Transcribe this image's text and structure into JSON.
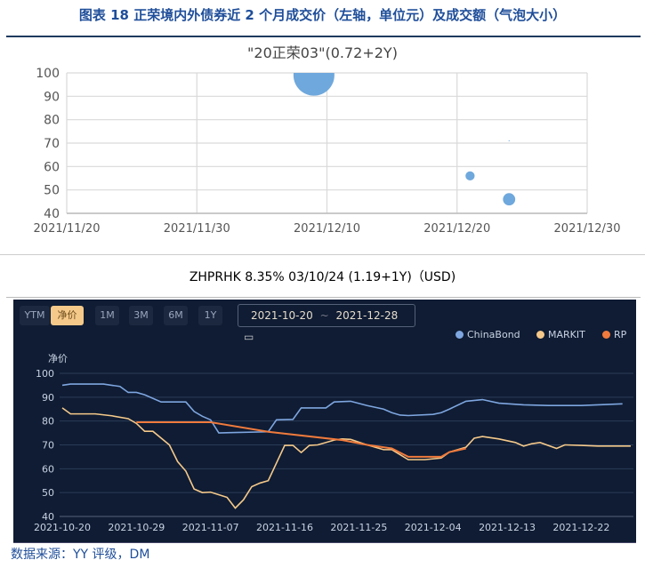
{
  "header": {
    "title": "图表 18 正荣境内外债券近 2 个月成交价（左轴，单位元）及成交额（气泡大小）"
  },
  "chart_data": [
    {
      "type": "scatter",
      "title": "\"20正荣03\"(0.72+2Y)",
      "ylim": [
        40,
        100
      ],
      "yticks": [
        "100",
        "90",
        "80",
        "70",
        "60",
        "50",
        "40"
      ],
      "xlim": [
        "2021-11-20",
        "2021-12-30"
      ],
      "xticks": [
        "2021/11/20",
        "2021/11/30",
        "2021/12/10",
        "2021/12/20",
        "2021/12/30"
      ],
      "grid": true,
      "bubble_color": "#6fa8dc",
      "points": [
        {
          "x": "2021-12-09",
          "y": 99,
          "size": 100
        },
        {
          "x": "2021-12-21",
          "y": 56,
          "size": 5
        },
        {
          "x": "2021-12-24",
          "y": 46,
          "size": 9
        },
        {
          "x": "2021-12-24",
          "y": 71,
          "size": 0.05
        }
      ]
    },
    {
      "type": "line",
      "title": "ZHPRHK 8.35% 03/10/24 (1.19+1Y)（USD)",
      "ylabel": "净价",
      "ylim": [
        40,
        100
      ],
      "yticks": [
        "100",
        "90",
        "80",
        "70",
        "60",
        "50",
        "40"
      ],
      "xlim": [
        "2021-10-20",
        "2021-12-28"
      ],
      "xticks": [
        "2021-10-20",
        "2021-10-29",
        "2021-11-07",
        "2021-11-16",
        "2021-11-25",
        "2021-12-04",
        "2021-12-13",
        "2021-12-22"
      ],
      "grid": true,
      "legend": "top-right",
      "series": [
        {
          "name": "ChinaBond",
          "color": "#7ea6e0",
          "points": [
            [
              "2021-10-20",
              95
            ],
            [
              "2021-10-21",
              95.5
            ],
            [
              "2021-10-25",
              95.5
            ],
            [
              "2021-10-27",
              94.5
            ],
            [
              "2021-10-28",
              92
            ],
            [
              "2021-10-29",
              92
            ],
            [
              "2021-10-30",
              91
            ],
            [
              "2021-11-01",
              88
            ],
            [
              "2021-11-04",
              88
            ],
            [
              "2021-11-05",
              84
            ],
            [
              "2021-11-06",
              82
            ],
            [
              "2021-11-07",
              80.5
            ],
            [
              "2021-11-08",
              75
            ],
            [
              "2021-11-10",
              75.2
            ],
            [
              "2021-11-14",
              75.5
            ],
            [
              "2021-11-15",
              80.5
            ],
            [
              "2021-11-17",
              80.7
            ],
            [
              "2021-11-18",
              85.5
            ],
            [
              "2021-11-21",
              85.5
            ],
            [
              "2021-11-22",
              88
            ],
            [
              "2021-11-24",
              88.3
            ],
            [
              "2021-11-26",
              86.5
            ],
            [
              "2021-11-28",
              85
            ],
            [
              "2021-11-29",
              83.5
            ],
            [
              "2021-11-30",
              82.5
            ],
            [
              "2021-12-01",
              82.3
            ],
            [
              "2021-12-04",
              82.8
            ],
            [
              "2021-12-05",
              83.5
            ],
            [
              "2021-12-06",
              85
            ],
            [
              "2021-12-08",
              88.3
            ],
            [
              "2021-12-10",
              89
            ],
            [
              "2021-12-12",
              87.5
            ],
            [
              "2021-12-15",
              86.8
            ],
            [
              "2021-12-18",
              86.5
            ],
            [
              "2021-12-22",
              86.5
            ],
            [
              "2021-12-27",
              87.2
            ]
          ]
        },
        {
          "name": "MARKIT",
          "color": "#f5c98a",
          "points": [
            [
              "2021-10-20",
              85.5
            ],
            [
              "2021-10-21",
              83
            ],
            [
              "2021-10-24",
              83
            ],
            [
              "2021-10-26",
              82.2
            ],
            [
              "2021-10-28",
              81
            ],
            [
              "2021-10-29",
              79
            ],
            [
              "2021-10-30",
              75.7
            ],
            [
              "2021-10-31",
              75.7
            ],
            [
              "2021-11-02",
              70
            ],
            [
              "2021-11-03",
              63
            ],
            [
              "2021-11-04",
              59
            ],
            [
              "2021-11-05",
              51.5
            ],
            [
              "2021-11-06",
              50
            ],
            [
              "2021-11-07",
              50.2
            ],
            [
              "2021-11-09",
              48
            ],
            [
              "2021-11-10",
              43.5
            ],
            [
              "2021-11-11",
              47
            ],
            [
              "2021-11-12",
              52.5
            ],
            [
              "2021-11-13",
              54
            ],
            [
              "2021-11-14",
              55
            ],
            [
              "2021-11-16",
              69.8
            ],
            [
              "2021-11-17",
              69.8
            ],
            [
              "2021-11-18",
              66.8
            ],
            [
              "2021-11-19",
              69.8
            ],
            [
              "2021-11-20",
              70
            ],
            [
              "2021-11-22",
              72
            ],
            [
              "2021-11-23",
              72.5
            ],
            [
              "2021-11-24",
              72.3
            ],
            [
              "2021-11-26",
              70
            ],
            [
              "2021-11-28",
              68
            ],
            [
              "2021-11-29",
              68
            ],
            [
              "2021-12-01",
              63.8
            ],
            [
              "2021-12-03",
              63.8
            ],
            [
              "2021-12-05",
              64.5
            ],
            [
              "2021-12-06",
              67
            ],
            [
              "2021-12-08",
              69
            ],
            [
              "2021-12-09",
              72.8
            ],
            [
              "2021-12-10",
              73.5
            ],
            [
              "2021-12-12",
              72.5
            ],
            [
              "2021-12-14",
              71
            ],
            [
              "2021-12-15",
              69.5
            ],
            [
              "2021-12-16",
              70.5
            ],
            [
              "2021-12-17",
              71
            ],
            [
              "2021-12-19",
              68.5
            ],
            [
              "2021-12-20",
              70
            ],
            [
              "2021-12-22",
              69.8
            ],
            [
              "2021-12-24",
              69.5
            ],
            [
              "2021-12-28",
              69.5
            ]
          ]
        },
        {
          "name": "RP",
          "color": "#f07a3c",
          "points": [
            [
              "2021-10-29",
              79.5
            ],
            [
              "2021-11-07",
              79.5
            ],
            [
              "2021-11-14",
              75.5
            ],
            [
              "2021-11-23",
              72
            ],
            [
              "2021-11-26",
              70
            ],
            [
              "2021-11-29",
              68.5
            ],
            [
              "2021-12-01",
              65
            ],
            [
              "2021-12-05",
              65
            ],
            [
              "2021-12-06",
              67
            ],
            [
              "2021-12-08",
              68.5
            ]
          ]
        }
      ]
    }
  ],
  "controls": {
    "ytm": "YTM",
    "net_price": "净价",
    "periods": [
      "1M",
      "3M",
      "6M",
      "1Y"
    ],
    "date_from": "2021-10-20",
    "date_sep": "~",
    "date_to": "2021-12-28"
  },
  "source": "数据来源：YY 评级，DM"
}
